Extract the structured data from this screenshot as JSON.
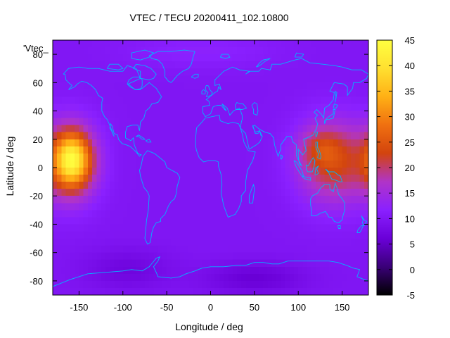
{
  "chart_data": {
    "type": "heatmap",
    "title": "VTEC / TECU 20200411_102.10800",
    "xlabel": "Longitude / deg",
    "ylabel": "Latitude / deg",
    "series_label": "'Vtec_",
    "xlim": [
      -180,
      180
    ],
    "ylim": [
      -90,
      90
    ],
    "x_ticks": [
      -150,
      -100,
      -50,
      0,
      50,
      100,
      150
    ],
    "y_ticks": [
      -80,
      -60,
      -40,
      -20,
      0,
      20,
      40,
      60,
      80
    ],
    "colorbar": {
      "range": [
        -5,
        45
      ],
      "ticks": [
        -5,
        0,
        5,
        10,
        15,
        20,
        25,
        30,
        35,
        40,
        45
      ],
      "palette": [
        "#000000",
        "#3a0078",
        "#6a00d8",
        "#8a20ff",
        "#b034c8",
        "#d2440e",
        "#f07010",
        "#ffb015",
        "#ffe030",
        "#ffff40"
      ]
    },
    "background_value": 10,
    "features": [
      {
        "name": "pacific-anomaly-outer",
        "lon": -158,
        "lat": 4,
        "sigma_lon": 20,
        "sigma_lat": 18,
        "value": 17
      },
      {
        "name": "pacific-anomaly-core",
        "lon": -158,
        "lat": 6,
        "sigma_lon": 13,
        "sigma_lat": 12,
        "value": 17
      },
      {
        "name": "asia-anomaly-outer",
        "lon": 140,
        "lat": 4,
        "sigma_lon": 28,
        "sigma_lat": 20,
        "value": 13
      },
      {
        "name": "asia-anomaly-core",
        "lon": 125,
        "lat": 14,
        "sigma_lon": 16,
        "sigma_lat": 9,
        "value": 5
      },
      {
        "name": "southern-low",
        "lon": 50,
        "lat": -78,
        "sigma_lon": 40,
        "sigma_lat": 8,
        "value": -4
      },
      {
        "name": "south-pacific-low",
        "lon": -95,
        "lat": -72,
        "sigma_lon": 35,
        "sigma_lat": 10,
        "value": -3
      },
      {
        "name": "northern-high",
        "lon": -10,
        "lat": 82,
        "sigma_lon": 60,
        "sigma_lat": 8,
        "value": 2
      }
    ],
    "colors": {
      "coastline": "#00b4ff",
      "frame": "#000000"
    }
  }
}
